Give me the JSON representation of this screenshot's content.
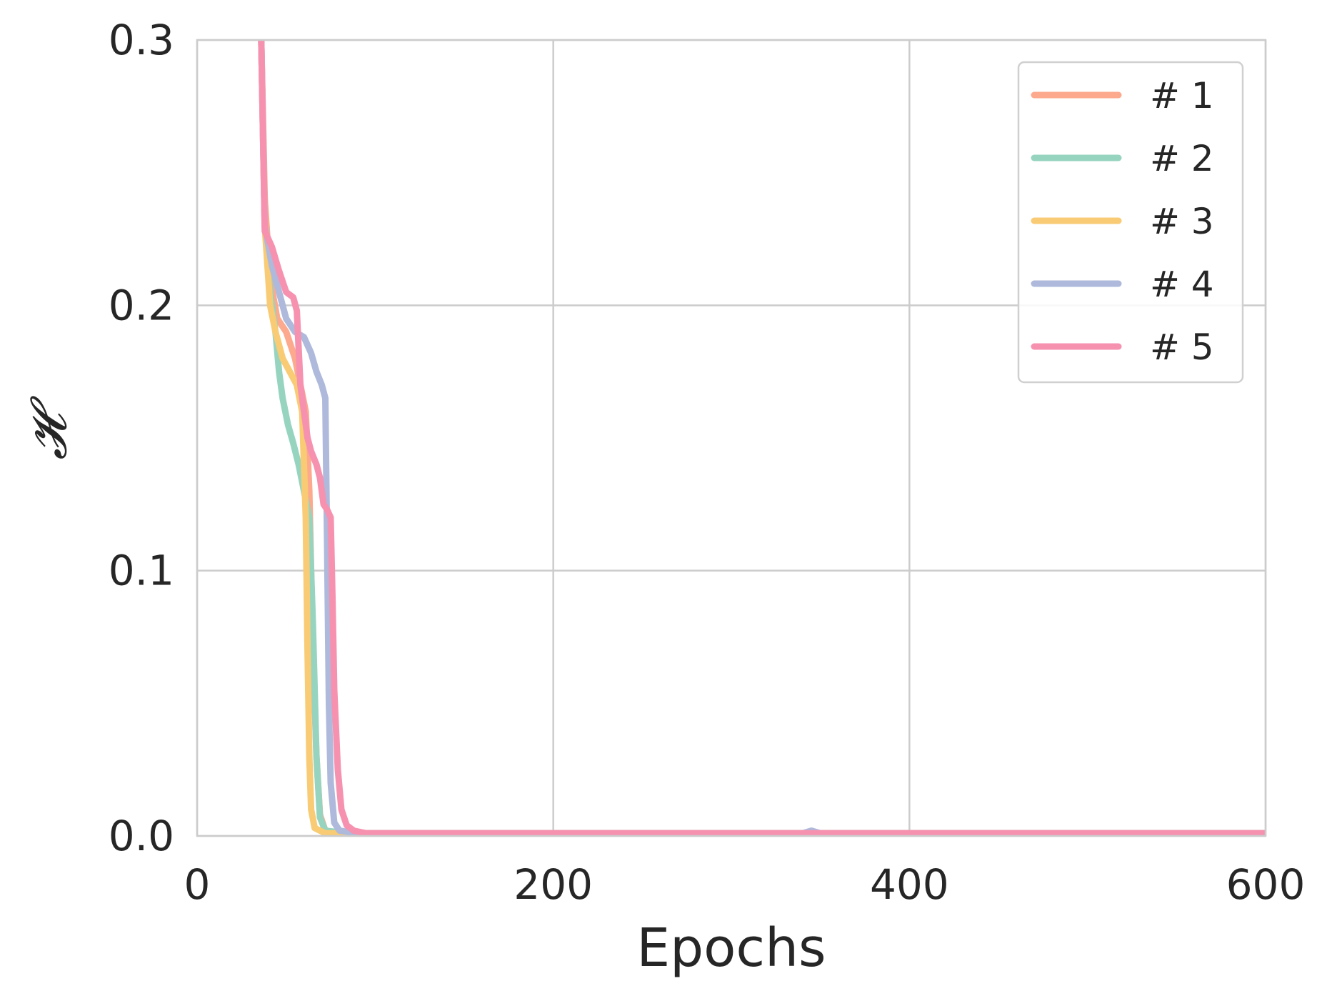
{
  "chart_data": {
    "type": "line",
    "title": "",
    "xlabel": "Epochs",
    "ylabel": "𝓗",
    "xlim": [
      0,
      600
    ],
    "ylim": [
      0.0,
      0.3
    ],
    "xticks": [
      0,
      200,
      400,
      600
    ],
    "xtick_labels": [
      "0",
      "200",
      "400",
      "600"
    ],
    "yticks": [
      0.0,
      0.1,
      0.2,
      0.3
    ],
    "ytick_labels": [
      "0.0",
      "0.1",
      "0.2",
      "0.3"
    ],
    "grid": true,
    "legend_position": "top-right",
    "series": [
      {
        "name": "# 1",
        "color": "#FCA98E",
        "points": [
          [
            36,
            0.3
          ],
          [
            38,
            0.24
          ],
          [
            41,
            0.21
          ],
          [
            45,
            0.195
          ],
          [
            50,
            0.19
          ],
          [
            55,
            0.18
          ],
          [
            58,
            0.17
          ],
          [
            61,
            0.16
          ],
          [
            63,
            0.13
          ],
          [
            65,
            0.07
          ],
          [
            67,
            0.03
          ],
          [
            69,
            0.008
          ],
          [
            72,
            0.002
          ],
          [
            80,
            0.001
          ],
          [
            600,
            0.001
          ]
        ]
      },
      {
        "name": "# 2",
        "color": "#96D4C0",
        "points": [
          [
            36,
            0.3
          ],
          [
            38,
            0.23
          ],
          [
            41,
            0.205
          ],
          [
            44,
            0.19
          ],
          [
            46,
            0.175
          ],
          [
            48,
            0.165
          ],
          [
            51,
            0.155
          ],
          [
            54,
            0.148
          ],
          [
            57,
            0.14
          ],
          [
            60,
            0.13
          ],
          [
            63,
            0.12
          ],
          [
            65,
            0.08
          ],
          [
            67,
            0.03
          ],
          [
            69,
            0.007
          ],
          [
            72,
            0.002
          ],
          [
            85,
            0.001
          ],
          [
            600,
            0.001
          ]
        ]
      },
      {
        "name": "# 3",
        "color": "#F8CB74",
        "points": [
          [
            36,
            0.3
          ],
          [
            38,
            0.23
          ],
          [
            41,
            0.2
          ],
          [
            44,
            0.19
          ],
          [
            48,
            0.18
          ],
          [
            52,
            0.175
          ],
          [
            56,
            0.17
          ],
          [
            59,
            0.16
          ],
          [
            61,
            0.12
          ],
          [
            62,
            0.07
          ],
          [
            63,
            0.03
          ],
          [
            64,
            0.01
          ],
          [
            66,
            0.003
          ],
          [
            72,
            0.001
          ],
          [
            600,
            0.001
          ]
        ]
      },
      {
        "name": "# 4",
        "color": "#AEB9DB",
        "points": [
          [
            36,
            0.3
          ],
          [
            38,
            0.23
          ],
          [
            42,
            0.215
          ],
          [
            46,
            0.205
          ],
          [
            50,
            0.195
          ],
          [
            55,
            0.19
          ],
          [
            60,
            0.188
          ],
          [
            64,
            0.182
          ],
          [
            67,
            0.175
          ],
          [
            70,
            0.17
          ],
          [
            72,
            0.165
          ],
          [
            73,
            0.11
          ],
          [
            74,
            0.05
          ],
          [
            75,
            0.02
          ],
          [
            77,
            0.005
          ],
          [
            80,
            0.002
          ],
          [
            90,
            0.001
          ],
          [
            200,
            0.001
          ],
          [
            340,
            0.001
          ],
          [
            345,
            0.002
          ],
          [
            350,
            0.001
          ],
          [
            600,
            0.001
          ]
        ]
      },
      {
        "name": "# 5",
        "color": "#F692B0",
        "points": [
          [
            36,
            0.3
          ],
          [
            38,
            0.228
          ],
          [
            42,
            0.222
          ],
          [
            46,
            0.213
          ],
          [
            50,
            0.205
          ],
          [
            54,
            0.203
          ],
          [
            56,
            0.198
          ],
          [
            58,
            0.17
          ],
          [
            60,
            0.16
          ],
          [
            62,
            0.15
          ],
          [
            64,
            0.145
          ],
          [
            67,
            0.14
          ],
          [
            69,
            0.135
          ],
          [
            71,
            0.125
          ],
          [
            73,
            0.123
          ],
          [
            75,
            0.12
          ],
          [
            76,
            0.09
          ],
          [
            77,
            0.055
          ],
          [
            79,
            0.025
          ],
          [
            81,
            0.01
          ],
          [
            84,
            0.004
          ],
          [
            88,
            0.002
          ],
          [
            95,
            0.001
          ],
          [
            600,
            0.001
          ]
        ]
      }
    ]
  }
}
